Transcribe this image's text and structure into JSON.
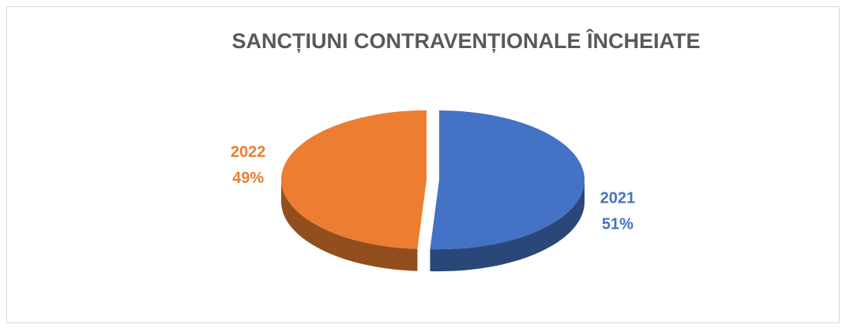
{
  "chart_data": {
    "type": "pie",
    "title": "SANCȚIUNI CONTRAVENȚIONALE  ÎNCHEIATE",
    "categories": [
      "2021",
      "2022"
    ],
    "values": [
      51,
      49
    ],
    "value_labels": [
      "51%",
      "49%"
    ],
    "colors": [
      "#4472c4",
      "#ed7d31"
    ]
  }
}
